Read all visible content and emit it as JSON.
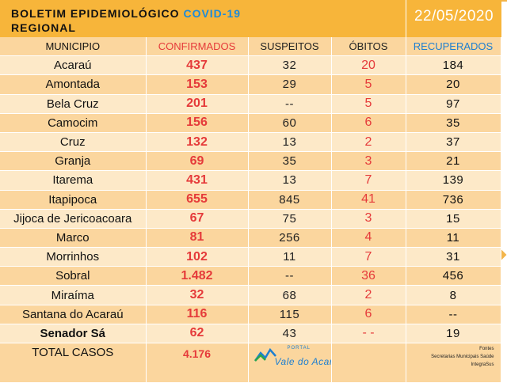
{
  "header": {
    "title_prefix": "BOLETIM EPIDEMIOLÓGICO",
    "title_highlight": "COVID-19",
    "subtitle": "REGIONAL",
    "date": "22/05/2020"
  },
  "columns": {
    "municipio": "MUNICIPIO",
    "confirmados": "CONFIRMADOS",
    "suspeitos": "SUSPEITOS",
    "obitos": "ÓBITOS",
    "recuperados": "RECUPERADOS"
  },
  "rows": [
    {
      "municipio": "Acaraú",
      "confirmados": "437",
      "suspeitos": "32",
      "obitos": "20",
      "recuperados": "184"
    },
    {
      "municipio": "Amontada",
      "confirmados": "153",
      "suspeitos": "29",
      "obitos": "5",
      "recuperados": "20"
    },
    {
      "municipio": "Bela Cruz",
      "confirmados": "201",
      "suspeitos": "--",
      "obitos": "5",
      "recuperados": "97"
    },
    {
      "municipio": "Camocim",
      "confirmados": "156",
      "suspeitos": "60",
      "obitos": "6",
      "recuperados": "35"
    },
    {
      "municipio": "Cruz",
      "confirmados": "132",
      "suspeitos": "13",
      "obitos": "2",
      "recuperados": "37"
    },
    {
      "municipio": "Granja",
      "confirmados": "69",
      "suspeitos": "35",
      "obitos": "3",
      "recuperados": "21"
    },
    {
      "municipio": "Itarema",
      "confirmados": "431",
      "suspeitos": "13",
      "obitos": "7",
      "recuperados": "139"
    },
    {
      "municipio": "Itapipoca",
      "confirmados": "655",
      "suspeitos": "845",
      "obitos": "41",
      "recuperados": "736"
    },
    {
      "municipio": "Jijoca de Jericoacoara",
      "confirmados": "67",
      "suspeitos": "75",
      "obitos": "3",
      "recuperados": "15"
    },
    {
      "municipio": "Marco",
      "confirmados": "81",
      "suspeitos": "256",
      "obitos": "4",
      "recuperados": "11"
    },
    {
      "municipio": "Morrinhos",
      "confirmados": "102",
      "suspeitos": "11",
      "obitos": "7",
      "recuperados": "31"
    },
    {
      "municipio": "Sobral",
      "confirmados": "1.482",
      "suspeitos": "--",
      "obitos": "36",
      "recuperados": "456"
    },
    {
      "municipio": "Miraíma",
      "confirmados": "32",
      "suspeitos": "68",
      "obitos": "2",
      "recuperados": "8"
    },
    {
      "municipio": "Santana do Acaraú",
      "confirmados": "116",
      "suspeitos": "115",
      "obitos": "6",
      "recuperados": "--"
    },
    {
      "municipio": "Senador Sá",
      "confirmados": "62",
      "suspeitos": "43",
      "obitos": "- -",
      "recuperados": "19"
    }
  ],
  "total": {
    "label": "TOTAL CASOS",
    "confirmados": "4.176"
  },
  "logo": {
    "portal": "PORTAL",
    "brand": "Vale do Acaraú"
  },
  "sources": [
    "Fontes",
    "Secretarias Municipais Saúde",
    "IntegraSus"
  ],
  "colors": {
    "accent": "#f7b53a",
    "confirmed": "#e53a3a",
    "recovered": "#1e7fd0",
    "covid": "#1e8bd8"
  }
}
